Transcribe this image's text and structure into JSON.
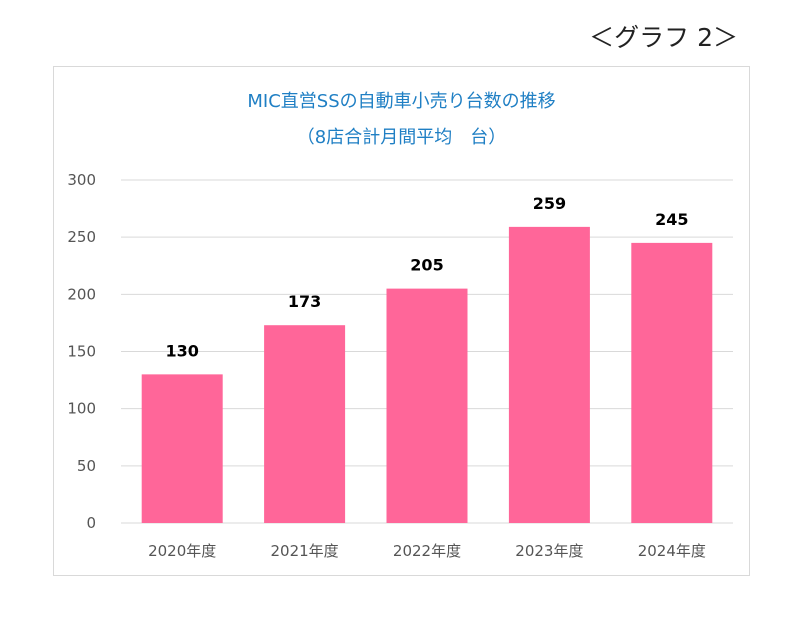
{
  "header": {
    "graph_label": "＜グラフ 2＞"
  },
  "chart_data": {
    "type": "bar",
    "title": "MIC直営SSの自動車小売り台数の推移",
    "subtitle": "（8店合計月間平均　台）",
    "categories": [
      "2020年度",
      "2021年度",
      "2022年度",
      "2023年度",
      "2024年度"
    ],
    "values": [
      130,
      173,
      205,
      259,
      245
    ],
    "ylim": [
      0,
      300
    ],
    "yticks": [
      0,
      50,
      100,
      150,
      200,
      250,
      300
    ],
    "grid": true,
    "legend": "none",
    "bar_color": "#ff6699",
    "title_color": "#1f7fc4",
    "grid_color": "#d9d9d9"
  }
}
